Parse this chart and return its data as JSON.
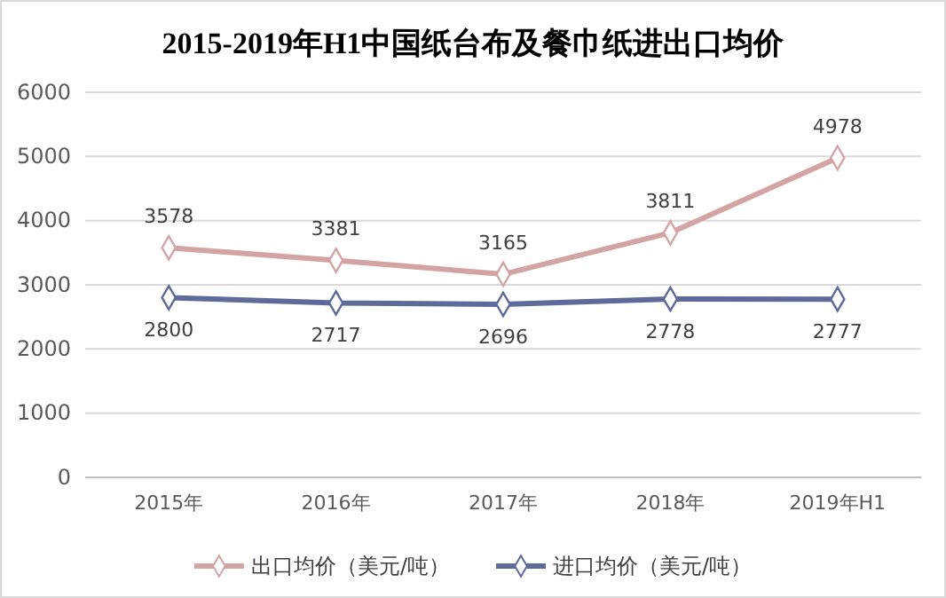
{
  "chart_data": {
    "type": "line",
    "title": "2015-2019年H1中国纸台布及餐巾纸进出口均价",
    "categories": [
      "2015年",
      "2016年",
      "2017年",
      "2018年",
      "2019年H1"
    ],
    "series": [
      {
        "name": "出口均价（美元/吨）",
        "color": "#d4a3a3",
        "values": [
          3578,
          3381,
          3165,
          3811,
          4978
        ]
      },
      {
        "name": "进口均价（美元/吨）",
        "color": "#5e6a9a",
        "values": [
          2800,
          2717,
          2696,
          2778,
          2777
        ]
      }
    ],
    "ylim": [
      0,
      6000
    ],
    "yticks": [
      0,
      1000,
      2000,
      3000,
      4000,
      5000,
      6000
    ],
    "grid": "y",
    "legend": "bottom",
    "marker": "diamond",
    "line_style": "solid",
    "data_labels": true
  }
}
